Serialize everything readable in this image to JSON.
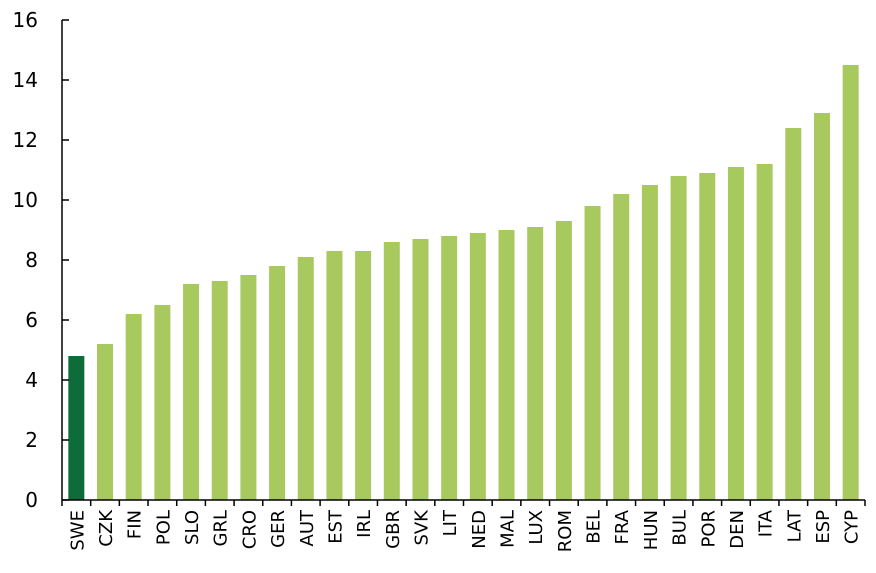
{
  "chart_data": {
    "type": "bar",
    "title": "",
    "xlabel": "",
    "ylabel": "",
    "categories": [
      "SWE",
      "CZK",
      "FIN",
      "POL",
      "SLO",
      "GRL",
      "CRO",
      "GER",
      "AUT",
      "EST",
      "IRL",
      "GBR",
      "SVK",
      "LIT",
      "NED",
      "MAL",
      "LUX",
      "ROM",
      "BEL",
      "FRA",
      "HUN",
      "BUL",
      "POR",
      "DEN",
      "ITA",
      "LAT",
      "ESP",
      "CYP"
    ],
    "values": [
      4.8,
      5.2,
      6.2,
      6.5,
      7.2,
      7.3,
      7.5,
      7.8,
      8.1,
      8.3,
      8.3,
      8.6,
      8.7,
      8.8,
      8.9,
      9.0,
      9.1,
      9.3,
      9.8,
      10.2,
      10.5,
      10.8,
      10.9,
      11.1,
      11.2,
      12.4,
      12.9,
      14.5
    ],
    "ylim": [
      0,
      16
    ],
    "yticks": [
      0,
      2,
      4,
      6,
      8,
      10,
      12,
      14,
      16
    ],
    "grid": false,
    "highlight_category": "SWE",
    "colors": {
      "highlight": "#0e6b3a",
      "bar": "#a8c95e",
      "axis": "#000000"
    }
  }
}
